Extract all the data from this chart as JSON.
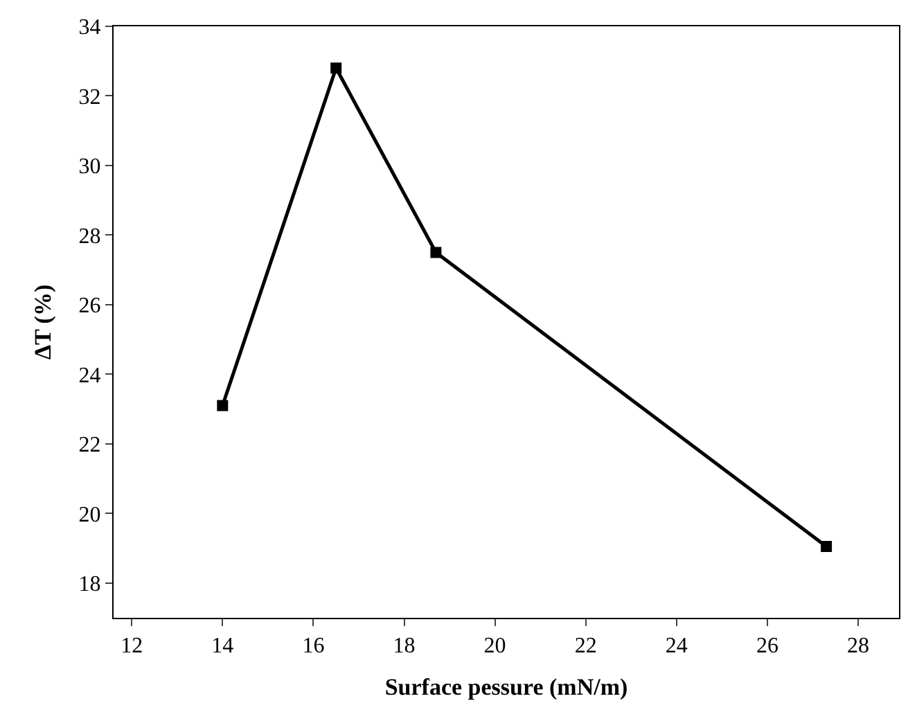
{
  "chart_data": {
    "type": "line",
    "xlabel": "Surface pessure (mN/m)",
    "ylabel": "ΔT (%)",
    "x": [
      14,
      16.5,
      18.7,
      27.3
    ],
    "series": [
      {
        "color": "#000000",
        "values": [
          23.1,
          32.8,
          27.5,
          19.05
        ]
      }
    ],
    "xlim": [
      11.6,
      28.9
    ],
    "xticks": [
      12,
      14,
      16,
      18,
      20,
      22,
      24,
      26,
      28
    ],
    "ylim": [
      17,
      34
    ],
    "yticks": [
      18,
      20,
      22,
      24,
      26,
      28,
      30,
      32,
      34
    ],
    "marker": "square",
    "line_style": "solid"
  }
}
